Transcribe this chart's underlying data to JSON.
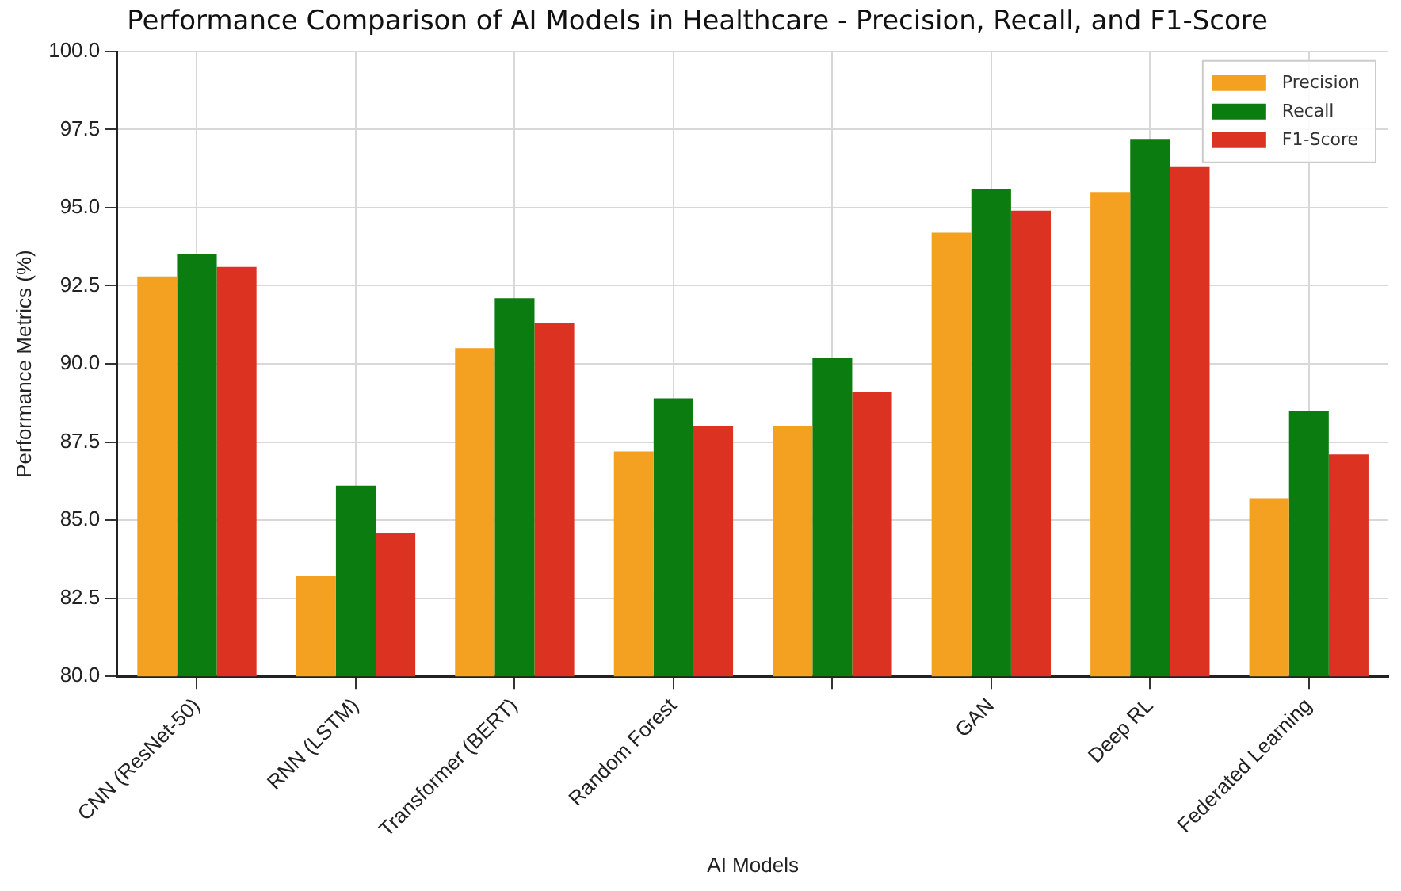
{
  "chart_data": {
    "type": "bar",
    "title": "Performance Comparison of AI Models in Healthcare - Precision, Recall, and F1-Score",
    "xlabel": "AI Models",
    "ylabel": "Performance Metrics (%)",
    "categories": [
      "CNN (ResNet-50)",
      "RNN (LSTM)",
      "Transformer (BERT)",
      "Random Forest",
      null,
      "GAN",
      "Deep RL",
      "Federated Learning"
    ],
    "series": [
      {
        "name": "Precision",
        "color": "#f4a020",
        "values": [
          92.8,
          83.2,
          90.5,
          87.2,
          88.0,
          94.2,
          95.5,
          85.7
        ]
      },
      {
        "name": "Recall",
        "color": "#0b7d10",
        "values": [
          93.5,
          86.1,
          92.1,
          88.9,
          90.2,
          95.6,
          97.2,
          88.5
        ]
      },
      {
        "name": "F1-Score",
        "color": "#dc3222",
        "values": [
          93.1,
          84.6,
          91.3,
          88.0,
          89.1,
          94.9,
          96.3,
          87.1
        ]
      }
    ],
    "ylim": [
      80,
      100
    ],
    "yticks": [
      {
        "value": 80,
        "label": "80.0"
      },
      82.5,
      {
        "value": 85,
        "label": "85.0"
      },
      87.5,
      {
        "value": 90,
        "label": "90.0"
      },
      92.5,
      {
        "value": 95,
        "label": "95.0"
      },
      97.5,
      {
        "value": 100,
        "label": "100.0"
      }
    ],
    "grid": true,
    "legend": "top right"
  }
}
